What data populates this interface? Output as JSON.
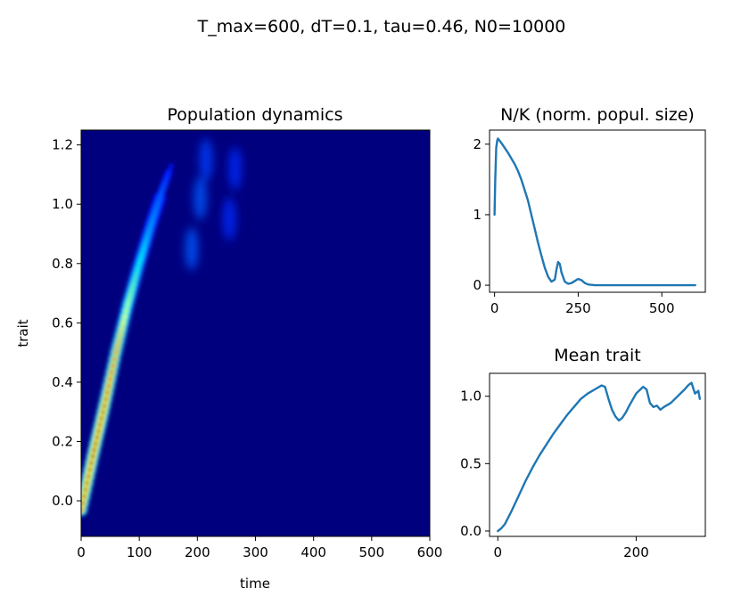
{
  "figure": {
    "suptitle": "T_max=600, dT=0.1, tau=0.46, N0=10000"
  },
  "chart_data": [
    {
      "type": "heatmap",
      "title": "Population dynamics",
      "xlabel": "time",
      "ylabel": "trait",
      "xlim": [
        0,
        600
      ],
      "ylim": [
        -0.12,
        1.25
      ],
      "xticks": [
        0,
        100,
        200,
        300,
        400,
        500,
        600
      ],
      "yticks": [
        0.0,
        0.2,
        0.4,
        0.6,
        0.8,
        1.0,
        1.2
      ],
      "colormap": "jet",
      "ridge": [
        {
          "time": 0,
          "trait": -0.03,
          "density": 0.9
        },
        {
          "time": 20,
          "trait": 0.15,
          "density": 1.0
        },
        {
          "time": 40,
          "trait": 0.32,
          "density": 0.95
        },
        {
          "time": 60,
          "trait": 0.5,
          "density": 0.75
        },
        {
          "time": 80,
          "trait": 0.66,
          "density": 0.5
        },
        {
          "time": 100,
          "trait": 0.8,
          "density": 0.32
        },
        {
          "time": 120,
          "trait": 0.93,
          "density": 0.2
        },
        {
          "time": 140,
          "trait": 1.05,
          "density": 0.12
        },
        {
          "time": 155,
          "trait": 1.13,
          "density": 0.05
        }
      ],
      "faint_patches": [
        {
          "time": 190,
          "trait": 0.85,
          "density": 0.05
        },
        {
          "time": 205,
          "trait": 1.02,
          "density": 0.05
        },
        {
          "time": 215,
          "trait": 1.15,
          "density": 0.04
        },
        {
          "time": 255,
          "trait": 0.95,
          "density": 0.03
        },
        {
          "time": 265,
          "trait": 1.12,
          "density": 0.03
        }
      ]
    },
    {
      "type": "line",
      "title": "N/K (norm. popul. size)",
      "xlim": [
        -15,
        630
      ],
      "ylim": [
        -0.1,
        2.2
      ],
      "xticks": [
        0,
        250,
        500
      ],
      "yticks": [
        0,
        1,
        2
      ],
      "series": [
        {
          "x": [
            0,
            2,
            5,
            8,
            10,
            15,
            20,
            30,
            40,
            50,
            60,
            70,
            80,
            90,
            100,
            110,
            120,
            130,
            140,
            150,
            160,
            170,
            180,
            185,
            190,
            195,
            200,
            210,
            220,
            230,
            240,
            250,
            260,
            270,
            280,
            300,
            350,
            400,
            450,
            500,
            550,
            600
          ],
          "y": [
            1.0,
            1.5,
            1.95,
            2.05,
            2.08,
            2.05,
            2.02,
            1.95,
            1.88,
            1.8,
            1.72,
            1.62,
            1.5,
            1.35,
            1.2,
            1.0,
            0.8,
            0.6,
            0.42,
            0.25,
            0.12,
            0.05,
            0.08,
            0.22,
            0.33,
            0.3,
            0.18,
            0.05,
            0.02,
            0.03,
            0.06,
            0.09,
            0.07,
            0.03,
            0.01,
            0.0,
            0.0,
            0.0,
            0.0,
            0.0,
            0.0,
            0.0
          ]
        }
      ]
    },
    {
      "type": "line",
      "title": "Mean trait",
      "xlim": [
        -12,
        300
      ],
      "ylim": [
        -0.04,
        1.17
      ],
      "xticks": [
        0,
        200
      ],
      "yticks": [
        0.0,
        0.5,
        1.0
      ],
      "ytick_labels": [
        "0.0",
        "0.5",
        "1.0"
      ],
      "series": [
        {
          "x": [
            0,
            5,
            10,
            20,
            30,
            40,
            50,
            60,
            70,
            80,
            90,
            100,
            110,
            120,
            130,
            140,
            150,
            155,
            160,
            165,
            170,
            175,
            180,
            185,
            190,
            200,
            210,
            215,
            220,
            225,
            230,
            235,
            240,
            250,
            260,
            270,
            275,
            280,
            285,
            290,
            292
          ],
          "y": [
            0.0,
            0.02,
            0.05,
            0.15,
            0.26,
            0.37,
            0.47,
            0.56,
            0.64,
            0.72,
            0.79,
            0.86,
            0.92,
            0.98,
            1.02,
            1.05,
            1.08,
            1.07,
            0.98,
            0.9,
            0.85,
            0.82,
            0.84,
            0.88,
            0.93,
            1.02,
            1.07,
            1.05,
            0.95,
            0.92,
            0.93,
            0.9,
            0.92,
            0.95,
            1.0,
            1.05,
            1.08,
            1.1,
            1.02,
            1.04,
            0.98
          ]
        }
      ]
    }
  ]
}
